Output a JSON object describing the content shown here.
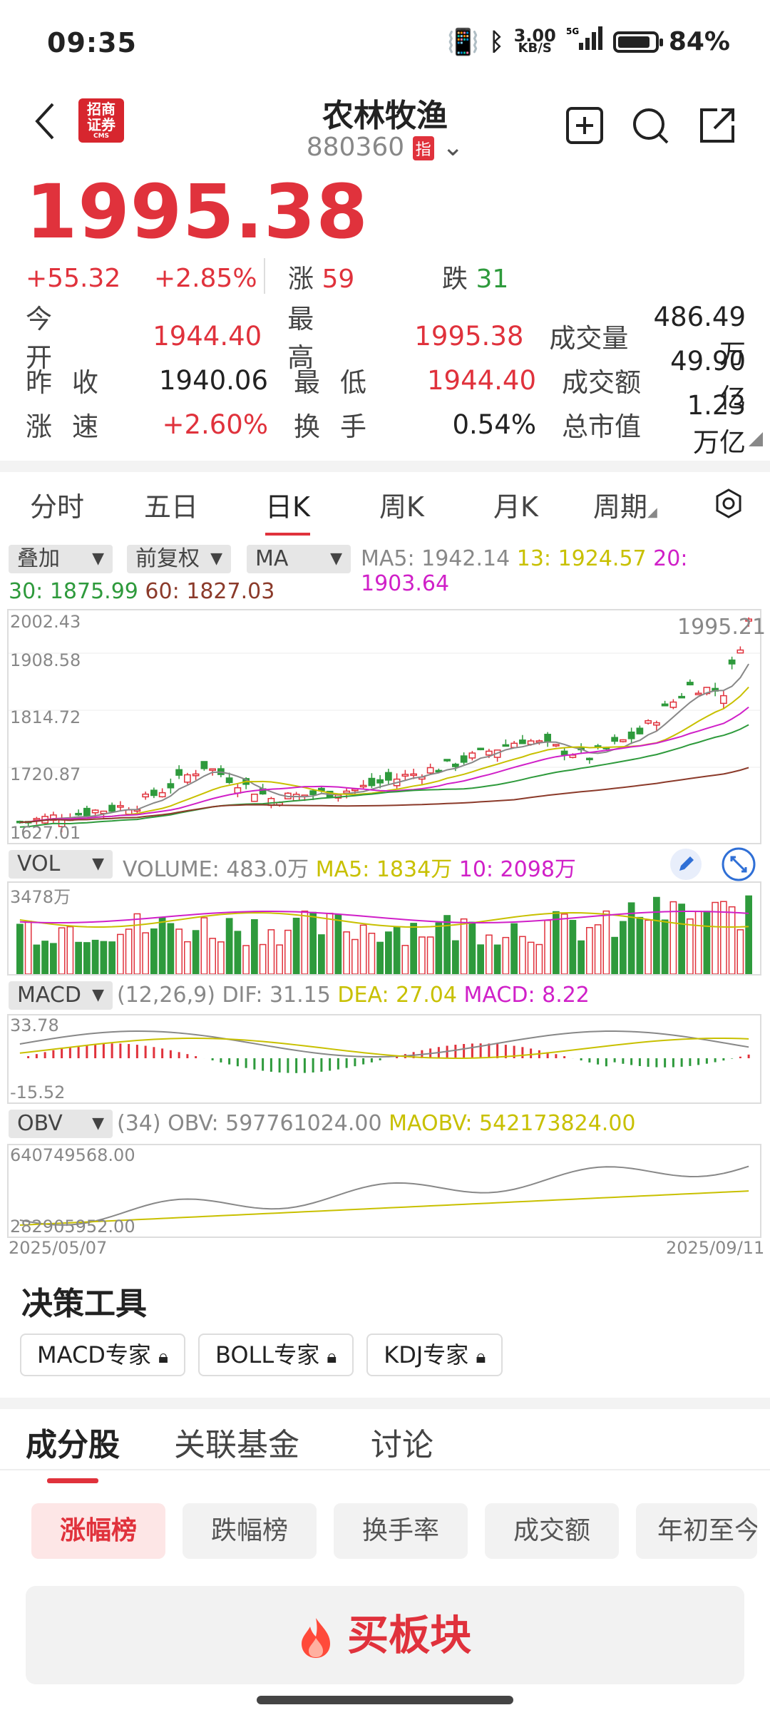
{
  "status_bar": {
    "time": "09:35",
    "net_speed_value": "3.00",
    "net_speed_unit": "KB/S",
    "battery": "84%",
    "network": "5G"
  },
  "header": {
    "title": "农林牧渔",
    "code": "880360",
    "code_badge": "指",
    "logo_line1": "招商",
    "logo_line2": "证券",
    "logo_sub": "CMS"
  },
  "quote": {
    "price": "1995.38",
    "change": "+55.32",
    "change_pct": "+2.85%",
    "up_label": "涨",
    "up_count": "59",
    "down_label": "跌",
    "down_count": "31",
    "stats": [
      {
        "k1": "今开",
        "v1": "1944.40",
        "k2": "最高",
        "v2": "1995.38",
        "k3": "成交量",
        "v3": "486.49万"
      },
      {
        "k1": "昨收",
        "v1": "1940.06",
        "k2": "最低",
        "v2": "1944.40",
        "k3": "成交额",
        "v3": "49.90亿"
      },
      {
        "k1": "涨速",
        "v1": "+2.60%",
        "k2": "换手",
        "v2": "0.54%",
        "k3": "总市值",
        "v3": "1.23万亿"
      }
    ]
  },
  "chart_tabs": [
    "分时",
    "五日",
    "日K",
    "周K",
    "月K",
    "周期"
  ],
  "active_chart_tab": "日K",
  "indicators": {
    "overlay": "叠加",
    "adjust": "前复权",
    "ma": "MA",
    "ma5": "MA5: 1942.14",
    "ma13": "13: 1924.57",
    "ma20": "20: 1903.64",
    "ma30": "30: 1875.99",
    "ma60": "60: 1827.03",
    "vol": "VOL",
    "volume": "VOLUME: 483.0万",
    "vol_ma5": "MA5: 1834万",
    "vol_ma10": "10: 2098万",
    "macd": "MACD",
    "macd_params": "(12,26,9) DIF: 31.15",
    "dea": "DEA: 27.04",
    "macd_val": "MACD: 8.22",
    "obv": "OBV",
    "obv_params": "(34) OBV: 597761024.00",
    "maobv": "MAOBV: 542173824.00"
  },
  "chart_data": {
    "type": "candlestick",
    "y_ticks": [
      "2002.43",
      "1908.58",
      "1814.72",
      "1720.87",
      "1627.01"
    ],
    "last_label": "1995.21",
    "ylim": [
      1627.01,
      2002.43
    ],
    "vol_top": "3478万",
    "macd_range": [
      "33.78",
      "-15.52"
    ],
    "obv_range": [
      "640749568.00",
      "282905952.00"
    ],
    "date_start": "2025/05/07",
    "date_end": "2025/09/11",
    "series": [
      {
        "name": "MA5",
        "color": "#888888"
      },
      {
        "name": "13",
        "color": "#c8c000"
      },
      {
        "name": "20",
        "color": "#d020c8"
      },
      {
        "name": "30",
        "color": "#2e9a3c"
      },
      {
        "name": "60",
        "color": "#8b3a2a"
      }
    ]
  },
  "decision_tools": {
    "title": "决策工具",
    "buttons": [
      "MACD专家",
      "BOLL专家",
      "KDJ专家"
    ]
  },
  "content_tabs": [
    "成分股",
    "关联基金",
    "讨论"
  ],
  "rank_chips": [
    "涨幅榜",
    "跌幅榜",
    "换手率",
    "成交额",
    "年初至今"
  ],
  "buy_button": "买板块"
}
